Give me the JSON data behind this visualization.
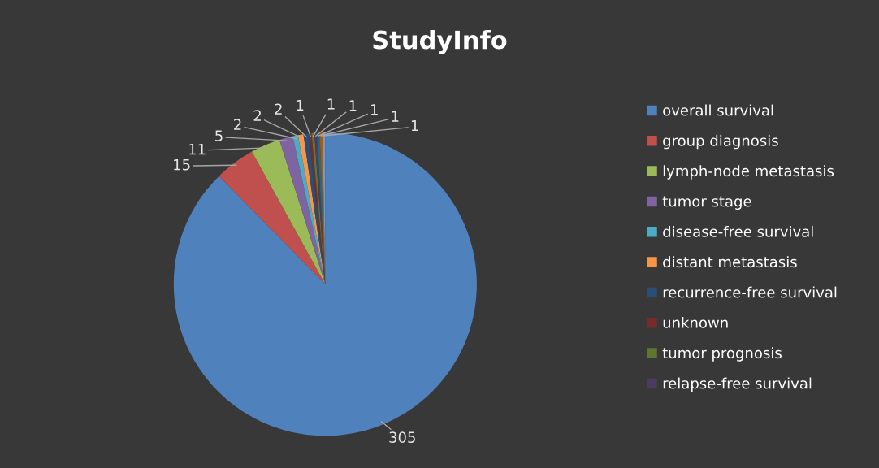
{
  "chart_data": {
    "type": "pie",
    "title": "StudyInfo",
    "categories": [
      "overall survival",
      "group diagnosis",
      "lymph-node metastasis",
      "tumor stage",
      "disease-free survival",
      "distant metastasis",
      "recurrence-free survival",
      "unknown",
      "tumor prognosis",
      "relapse-free survival",
      null,
      null,
      null
    ],
    "values": [
      305,
      15,
      11,
      5,
      2,
      2,
      2,
      1,
      1,
      1,
      1,
      1,
      1
    ],
    "colors": [
      "#4f81bd",
      "#c0504d",
      "#9bbb59",
      "#8064a2",
      "#4bacc6",
      "#f79646",
      "#2c4d75",
      "#772c2a",
      "#5f7530",
      "#4d3b62",
      "#276a7c",
      "#b65708",
      "#729aca"
    ],
    "data_labels": true,
    "legend": "right"
  }
}
